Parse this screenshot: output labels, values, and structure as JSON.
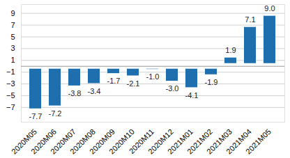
{
  "chart_data": {
    "type": "bar",
    "categories": [
      "2020M05",
      "2020M06",
      "2020M07",
      "2020M08",
      "2020M09",
      "2020M10",
      "2020M11",
      "2020M12",
      "2021M01",
      "2021M02",
      "2021M03",
      "2021M04",
      "2021M05"
    ],
    "values": [
      -7.7,
      -7.2,
      -3.8,
      -3.4,
      -1.7,
      -2.1,
      -1.0,
      -3.0,
      -4.1,
      -1.9,
      1.9,
      7.1,
      9.0
    ],
    "value_labels": [
      "-7.7",
      "-7.2",
      "-3.8",
      "-3.4",
      "-1.7",
      "-2.1",
      "-1.0",
      "-3.0",
      "-4.1",
      "-1.9",
      "1.9",
      "7.1",
      "9.0"
    ],
    "data_labels": true,
    "color": "#1f6fae",
    "ylim": [
      -9.5,
      10.5
    ],
    "yticks": [
      -7,
      -5,
      -3,
      -1,
      1,
      3,
      5,
      7,
      9
    ],
    "grid": true
  }
}
